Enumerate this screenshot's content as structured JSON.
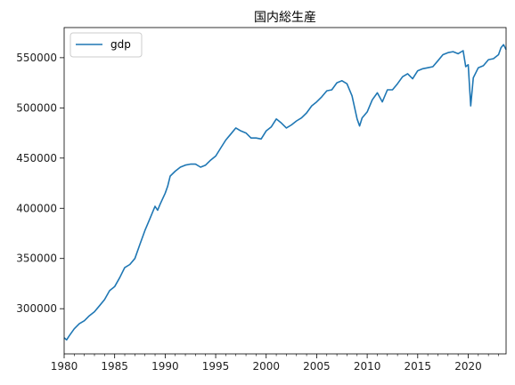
{
  "chart_data": {
    "type": "line",
    "title": "国内総生産",
    "xlabel": "",
    "ylabel": "",
    "xlim": [
      1980.0,
      2023.75
    ],
    "ylim": [
      255000,
      580000
    ],
    "x_ticks": [
      1980,
      1985,
      1990,
      1995,
      2000,
      2005,
      2010,
      2015,
      2020
    ],
    "x_tick_labels": [
      "1980",
      "1985",
      "1990",
      "1995",
      "2000",
      "2005",
      "2010",
      "2015",
      "2020"
    ],
    "y_ticks": [
      300000,
      350000,
      400000,
      450000,
      500000,
      550000
    ],
    "y_tick_labels": [
      "300000",
      "350000",
      "400000",
      "450000",
      "500000",
      "550000"
    ],
    "grid": false,
    "legend": {
      "position": "top-left"
    },
    "colors": {
      "series": "#1f77b4",
      "axes": "#000000",
      "legend_border": "#cccccc"
    },
    "series": [
      {
        "name": "gdp",
        "x": [
          1980.0,
          1980.25,
          1980.5,
          1981.0,
          1981.5,
          1982.0,
          1982.5,
          1983.0,
          1983.5,
          1984.0,
          1984.5,
          1985.0,
          1985.5,
          1986.0,
          1986.5,
          1987.0,
          1987.5,
          1988.0,
          1988.5,
          1989.0,
          1989.25,
          1989.5,
          1990.0,
          1990.25,
          1990.5,
          1991.0,
          1991.5,
          1992.0,
          1992.5,
          1993.0,
          1993.5,
          1994.0,
          1994.5,
          1995.0,
          1995.5,
          1996.0,
          1996.5,
          1997.0,
          1997.5,
          1998.0,
          1998.5,
          1999.0,
          1999.5,
          2000.0,
          2000.5,
          2001.0,
          2001.5,
          2002.0,
          2002.5,
          2003.0,
          2003.5,
          2004.0,
          2004.5,
          2005.0,
          2005.5,
          2006.0,
          2006.5,
          2007.0,
          2007.5,
          2008.0,
          2008.5,
          2009.0,
          2009.25,
          2009.5,
          2010.0,
          2010.5,
          2011.0,
          2011.5,
          2012.0,
          2012.5,
          2013.0,
          2013.5,
          2014.0,
          2014.5,
          2015.0,
          2015.5,
          2016.0,
          2016.5,
          2017.0,
          2017.5,
          2018.0,
          2018.5,
          2019.0,
          2019.5,
          2019.75,
          2020.0,
          2020.25,
          2020.5,
          2021.0,
          2021.5,
          2022.0,
          2022.5,
          2023.0,
          2023.25,
          2023.5,
          2023.75
        ],
        "values": [
          271000,
          269000,
          273000,
          280000,
          285000,
          288000,
          293000,
          297000,
          303000,
          309000,
          318000,
          322000,
          331000,
          341000,
          344000,
          350000,
          364000,
          378000,
          390000,
          402000,
          398000,
          404000,
          415000,
          422000,
          432000,
          437000,
          441000,
          443000,
          444000,
          444000,
          441000,
          443000,
          448000,
          452000,
          460000,
          468000,
          474000,
          480000,
          477000,
          475000,
          470000,
          470000,
          469000,
          477000,
          481000,
          489000,
          485000,
          480000,
          483000,
          487000,
          490000,
          495000,
          502000,
          506000,
          511000,
          517000,
          518000,
          525000,
          527000,
          524000,
          512000,
          489000,
          482000,
          490000,
          496000,
          508000,
          515000,
          506000,
          518000,
          518000,
          524000,
          531000,
          534000,
          529000,
          537000,
          539000,
          540000,
          541000,
          547000,
          553000,
          555000,
          556000,
          554000,
          557000,
          541000,
          543000,
          502000,
          530000,
          540000,
          542000,
          548000,
          549000,
          553000,
          560000,
          563000,
          558000
        ]
      }
    ]
  }
}
